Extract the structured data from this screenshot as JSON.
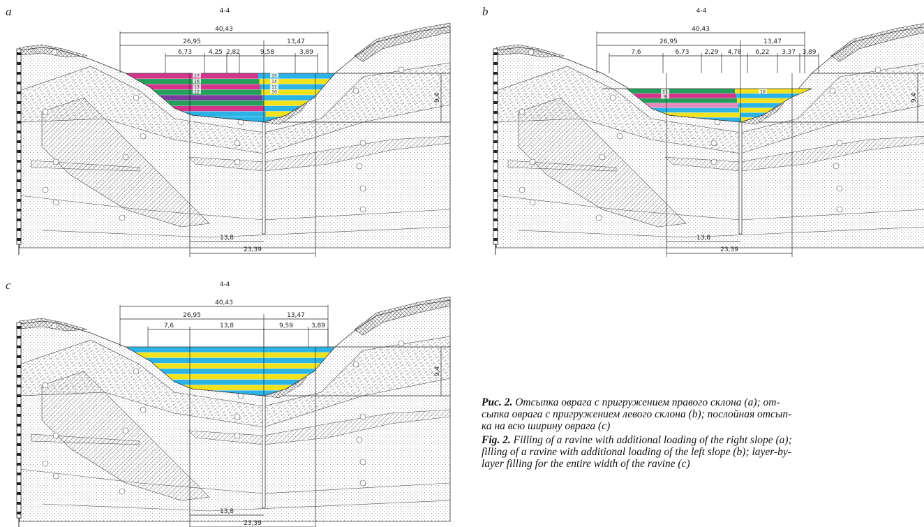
{
  "panels": [
    {
      "letter": "a",
      "section": "4-4",
      "total_width": "40,43",
      "left_width": "26,95",
      "right_width": "13,47",
      "segment_widths": [
        "6,73",
        "4,25",
        "2,82",
        "9,58",
        "3,89"
      ],
      "depth": "9,4",
      "bottom_widths": [
        "13,8",
        "23,39"
      ],
      "layer_numbers": [
        "17",
        "16",
        "13",
        "12",
        "15",
        "14",
        "11",
        "10"
      ]
    },
    {
      "letter": "b",
      "section": "4-4",
      "total_width": "40,43",
      "left_width": "26,95",
      "right_width": "13,47",
      "segment_widths": [
        "7,6",
        "6,73",
        "2,29",
        "4,78",
        "6,22",
        "3,37",
        "3,89"
      ],
      "depth": "9,4",
      "bottom_widths": [
        "13,8",
        "23,39"
      ],
      "layer_numbers": [
        "11",
        "9",
        "10"
      ]
    },
    {
      "letter": "c",
      "section": "4-4",
      "total_width": "40,43",
      "left_width": "26,95",
      "right_width": "13,47",
      "segment_widths": [
        "7,6",
        "13,8",
        "9,59",
        "3,89"
      ],
      "depth": "9,4",
      "bottom_widths": [
        "13,8",
        "23,39"
      ]
    }
  ],
  "caption": {
    "ru": {
      "label": "Рис. 2.",
      "lines": [
        "Отсыпка оврага с пригружением правого склона (a); от-",
        "сыпка оврага с пригружением левого склона (b); послойная отсып-",
        "ка на всю ширину оврага (c)"
      ]
    },
    "en": {
      "label": "Fig. 2.",
      "lines": [
        "Filling of a ravine with additional loading of the right slope (a);",
        "filling of a ravine with additional loading of the left slope (b); layer-by-",
        "layer filling for the entire width of the ravine (c)"
      ]
    }
  }
}
